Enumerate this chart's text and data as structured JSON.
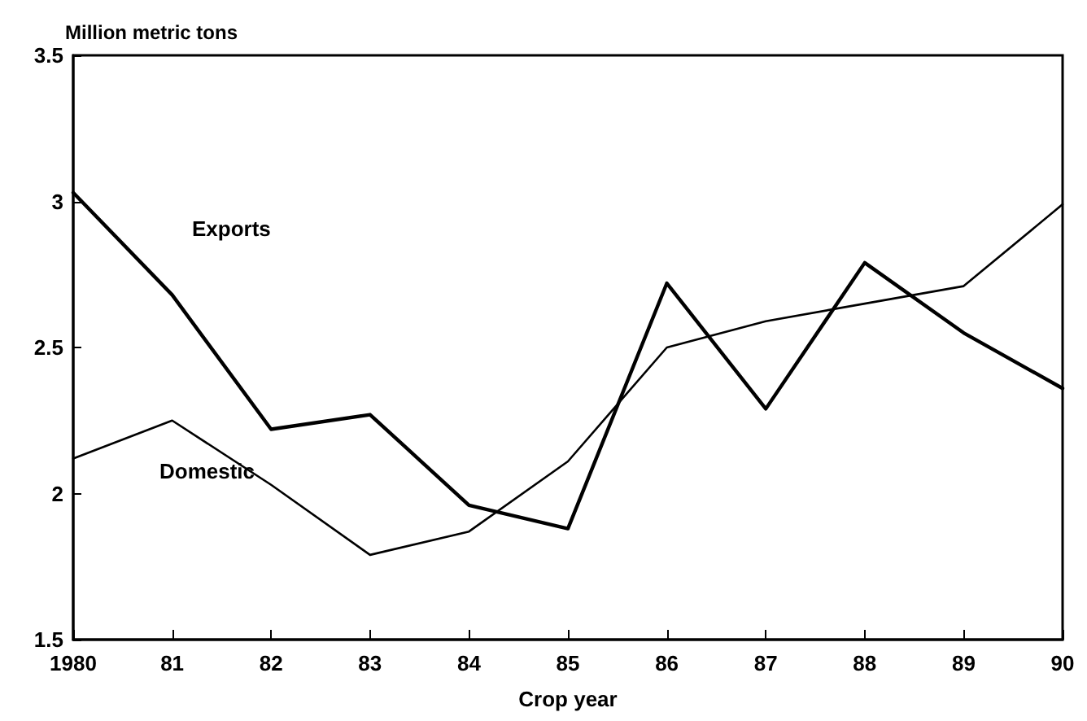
{
  "chart_data": {
    "type": "line",
    "xlabel": "Crop year",
    "ylabel": "Million metric tons",
    "categories": [
      "1980",
      "81",
      "82",
      "83",
      "84",
      "85",
      "86",
      "87",
      "88",
      "89",
      "90"
    ],
    "series": [
      {
        "name": "Exports",
        "color": "#000000",
        "values": [
          3.03,
          2.68,
          2.22,
          2.27,
          1.96,
          1.88,
          2.72,
          2.29,
          2.79,
          2.55,
          2.36
        ]
      },
      {
        "name": "Domestic",
        "color": "#000000",
        "values": [
          2.12,
          2.25,
          2.03,
          1.79,
          1.87,
          2.11,
          2.5,
          2.59,
          2.65,
          2.71,
          2.99
        ]
      }
    ],
    "ylim": [
      1.5,
      3.5
    ],
    "yticks": [
      1.5,
      2,
      2.5,
      3,
      3.5
    ],
    "grid": false,
    "legend": false,
    "marker": "none",
    "line_style": "solid"
  }
}
